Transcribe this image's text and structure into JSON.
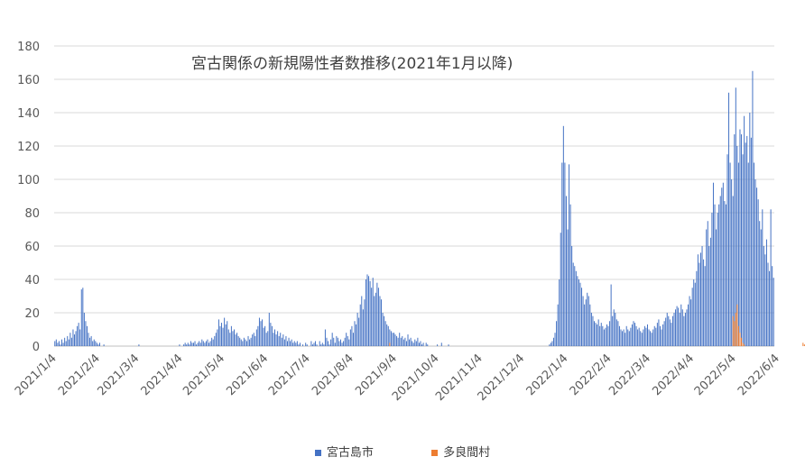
{
  "chart_data": {
    "type": "bar",
    "title": "宮古関係の新規陽性者数推移(2021年1月以降)",
    "xlabel": "",
    "ylabel": "",
    "ylim": [
      0,
      180
    ],
    "yticks": [
      0,
      20,
      40,
      60,
      80,
      100,
      120,
      140,
      160,
      180
    ],
    "grid": true,
    "legend_position": "bottom",
    "xtick_labels": [
      "2021/1/4",
      "2021/2/4",
      "2021/3/4",
      "2021/4/4",
      "2021/5/4",
      "2021/6/4",
      "2021/7/4",
      "2021/8/4",
      "2021/9/4",
      "2021/10/4",
      "2021/11/4",
      "2021/12/4",
      "2022/1/4",
      "2022/2/4",
      "2022/3/4",
      "2022/4/4",
      "2022/5/4",
      "2022/6/4"
    ],
    "start_date": "2021-01-04",
    "series": [
      {
        "name": "宮古島市",
        "color": "#4472C4",
        "values": [
          3,
          4,
          2,
          3,
          1,
          4,
          2,
          5,
          3,
          6,
          4,
          8,
          5,
          10,
          7,
          9,
          12,
          14,
          10,
          34,
          35,
          20,
          15,
          12,
          8,
          5,
          6,
          3,
          4,
          3,
          2,
          1,
          2,
          0,
          0,
          1,
          0,
          0,
          0,
          0,
          0,
          0,
          0,
          0,
          0,
          0,
          0,
          0,
          0,
          0,
          0,
          0,
          0,
          0,
          0,
          0,
          0,
          0,
          0,
          0,
          1,
          0,
          0,
          0,
          0,
          0,
          0,
          0,
          0,
          0,
          0,
          0,
          0,
          0,
          0,
          0,
          0,
          0,
          0,
          0,
          0,
          0,
          0,
          0,
          0,
          0,
          0,
          0,
          0,
          1,
          0,
          0,
          1,
          2,
          1,
          2,
          1,
          3,
          2,
          2,
          3,
          1,
          2,
          3,
          2,
          4,
          3,
          2,
          3,
          4,
          2,
          3,
          5,
          4,
          6,
          8,
          10,
          16,
          12,
          14,
          11,
          17,
          13,
          15,
          10,
          8,
          12,
          9,
          10,
          7,
          8,
          6,
          5,
          4,
          3,
          5,
          4,
          3,
          6,
          4,
          5,
          7,
          8,
          6,
          10,
          12,
          17,
          15,
          16,
          11,
          12,
          8,
          9,
          20,
          14,
          12,
          8,
          10,
          7,
          9,
          6,
          8,
          5,
          7,
          4,
          6,
          3,
          5,
          3,
          4,
          2,
          3,
          2,
          3,
          1,
          2,
          0,
          1,
          0,
          2,
          1,
          0,
          0,
          3,
          1,
          2,
          3,
          1,
          0,
          3,
          1,
          2,
          1,
          10,
          5,
          3,
          1,
          4,
          8,
          5,
          2,
          6,
          5,
          3,
          4,
          2,
          3,
          5,
          8,
          6,
          4,
          10,
          12,
          8,
          15,
          13,
          20,
          17,
          25,
          30,
          22,
          28,
          40,
          43,
          42,
          39,
          35,
          41,
          30,
          32,
          38,
          35,
          30,
          28,
          20,
          18,
          15,
          13,
          12,
          10,
          9,
          8,
          8,
          7,
          6,
          5,
          8,
          5,
          6,
          4,
          5,
          3,
          7,
          4,
          5,
          3,
          2,
          4,
          3,
          5,
          2,
          3,
          1,
          2,
          0,
          2,
          1,
          0,
          0,
          0,
          0,
          0,
          0,
          1,
          0,
          0,
          2,
          0,
          0,
          0,
          0,
          1,
          0,
          0,
          0,
          0,
          0,
          0,
          0,
          0,
          0,
          0,
          0,
          0,
          0,
          0,
          0,
          0,
          0,
          0,
          0,
          0,
          0,
          0,
          0,
          0,
          0,
          0,
          0,
          0,
          0,
          0,
          0,
          0,
          0,
          0,
          0,
          0,
          0,
          0,
          0,
          0,
          0,
          0,
          0,
          0,
          0,
          0,
          0,
          0,
          0,
          0,
          0,
          0,
          0,
          0,
          0,
          0,
          0,
          0,
          0,
          0,
          0,
          0,
          0,
          0,
          0,
          0,
          0,
          0,
          0,
          0,
          0,
          1,
          2,
          3,
          5,
          8,
          15,
          25,
          40,
          68,
          110,
          132,
          110,
          90,
          70,
          109,
          85,
          60,
          50,
          48,
          45,
          42,
          40,
          38,
          35,
          30,
          25,
          28,
          32,
          30,
          25,
          20,
          18,
          15,
          14,
          13,
          16,
          12,
          14,
          12,
          10,
          11,
          13,
          12,
          15,
          37,
          18,
          22,
          20,
          16,
          15,
          12,
          10,
          9,
          10,
          8,
          12,
          10,
          9,
          11,
          13,
          15,
          14,
          12,
          10,
          11,
          9,
          8,
          10,
          12,
          11,
          13,
          10,
          9,
          8,
          10,
          12,
          11,
          14,
          16,
          12,
          10,
          13,
          15,
          17,
          20,
          18,
          16,
          14,
          18,
          20,
          22,
          24,
          23,
          20,
          25,
          22,
          18,
          20,
          22,
          25,
          30,
          28,
          35,
          40,
          38,
          45,
          55,
          50,
          56,
          60,
          52,
          48,
          70,
          75,
          60,
          65,
          80,
          98,
          85,
          70,
          80,
          85,
          90,
          95,
          98,
          87,
          85,
          115,
          152,
          110,
          100,
          90,
          127,
          155,
          120,
          110,
          130,
          127,
          115,
          138,
          122,
          126,
          110,
          140,
          125,
          165,
          110,
          100,
          95,
          88,
          75,
          70,
          82,
          60,
          55,
          64,
          50,
          45,
          82,
          48,
          41
        ]
      },
      {
        "name": "多良間村",
        "color": "#ED7D31",
        "values": [
          0,
          0,
          0,
          0,
          0,
          0,
          0,
          0,
          0,
          0,
          0,
          0,
          0,
          0,
          0,
          0,
          0,
          0,
          0,
          0,
          0,
          0,
          0,
          0,
          0,
          0,
          0,
          0,
          0,
          0,
          0,
          0,
          0,
          0,
          0,
          0,
          0,
          0,
          0,
          0,
          0,
          0,
          0,
          0,
          0,
          0,
          0,
          0,
          0,
          0,
          0,
          0,
          0,
          0,
          0,
          0,
          0,
          0,
          0,
          0,
          0,
          0,
          0,
          0,
          0,
          0,
          0,
          0,
          0,
          0,
          0,
          0,
          0,
          0,
          0,
          0,
          0,
          0,
          0,
          0,
          0,
          0,
          0,
          0,
          0,
          0,
          0,
          0,
          0,
          0,
          0,
          0,
          0,
          0,
          0,
          0,
          0,
          0,
          0,
          0,
          0,
          0,
          0,
          0,
          0,
          0,
          0,
          0,
          0,
          0,
          0,
          0,
          0,
          0,
          0,
          0,
          0,
          0,
          0,
          0,
          0,
          0,
          0,
          0,
          0,
          0,
          0,
          0,
          0,
          0,
          0,
          0,
          0,
          0,
          0,
          0,
          0,
          0,
          0,
          0,
          0,
          0,
          0,
          0,
          0,
          0,
          0,
          0,
          0,
          0,
          0,
          0,
          0,
          0,
          0,
          0,
          0,
          0,
          0,
          0,
          0,
          0,
          0,
          0,
          0,
          0,
          0,
          0,
          0,
          0,
          0,
          0,
          0,
          0,
          0,
          0,
          0,
          0,
          0,
          0,
          0,
          0,
          0,
          0,
          0,
          0,
          0,
          0,
          0,
          0,
          0,
          0,
          0,
          0,
          0,
          0,
          0,
          0,
          0,
          0,
          0,
          0,
          0,
          0,
          0,
          0,
          0,
          0,
          0,
          0,
          0,
          0,
          0,
          0,
          0,
          0,
          0,
          0,
          0,
          0,
          0,
          0,
          0,
          0,
          0,
          0,
          0,
          0,
          0,
          0,
          0,
          0,
          0,
          0,
          0,
          0,
          0,
          0,
          0,
          2,
          0,
          0,
          0,
          0,
          0,
          0,
          0,
          0,
          0,
          0,
          0,
          0,
          0,
          0,
          0,
          0,
          0,
          0,
          0,
          0,
          0,
          0,
          0,
          0,
          0,
          0,
          0,
          0,
          0,
          0,
          0,
          0,
          0,
          0,
          0,
          0,
          0,
          0,
          0,
          0,
          0,
          0,
          0,
          0,
          0,
          0,
          0,
          0,
          0,
          0,
          0,
          0,
          0,
          0,
          0,
          0,
          0,
          0,
          0,
          0,
          0,
          0,
          0,
          0,
          0,
          0,
          0,
          0,
          0,
          0,
          0,
          0,
          0,
          0,
          0,
          0,
          0,
          0,
          0,
          0,
          0,
          0,
          0,
          0,
          0,
          0,
          0,
          0,
          0,
          0,
          0,
          0,
          0,
          0,
          0,
          0,
          0,
          0,
          0,
          0,
          0,
          0,
          0,
          0,
          0,
          0,
          0,
          0,
          0,
          0,
          0,
          0,
          0,
          0,
          0,
          0,
          0,
          0,
          0,
          0,
          0,
          0,
          0,
          0,
          0,
          0,
          0,
          0,
          0,
          0,
          0,
          0,
          0,
          0,
          0,
          0,
          0,
          0,
          0,
          0,
          0,
          0,
          0,
          0,
          0,
          0,
          0,
          0,
          0,
          0,
          0,
          0,
          0,
          0,
          0,
          0,
          0,
          0,
          0,
          0,
          0,
          0,
          0,
          0,
          0,
          0,
          0,
          0,
          0,
          0,
          0,
          0,
          0,
          0,
          0,
          0,
          0,
          0,
          0,
          0,
          0,
          0,
          0,
          0,
          0,
          0,
          0,
          0,
          0,
          0,
          0,
          0,
          0,
          0,
          0,
          0,
          0,
          0,
          0,
          0,
          0,
          0,
          0,
          0,
          0,
          0,
          0,
          0,
          0,
          0,
          0,
          0,
          0,
          0,
          0,
          0,
          0,
          0,
          0,
          0,
          0,
          0,
          0,
          0,
          0,
          0,
          0,
          0,
          0,
          0,
          0,
          0,
          0,
          0,
          0,
          0,
          0,
          0,
          0,
          0,
          0,
          0,
          0,
          0,
          18,
          15,
          20,
          25,
          12,
          8,
          5,
          2,
          1,
          0,
          0,
          0,
          0,
          0,
          0,
          0,
          0,
          0,
          0,
          0,
          0,
          0,
          0,
          0,
          0,
          0,
          0,
          0,
          0,
          0,
          0,
          0,
          0,
          0,
          0,
          0,
          0,
          0,
          0,
          0,
          0,
          0,
          0,
          0,
          0,
          0,
          0,
          0,
          0,
          0,
          2,
          1,
          0,
          0,
          0,
          0,
          0,
          0,
          0,
          0,
          0,
          0,
          0,
          0,
          0,
          0,
          0,
          0,
          0,
          0,
          0,
          0,
          0,
          0,
          0
        ]
      }
    ]
  }
}
